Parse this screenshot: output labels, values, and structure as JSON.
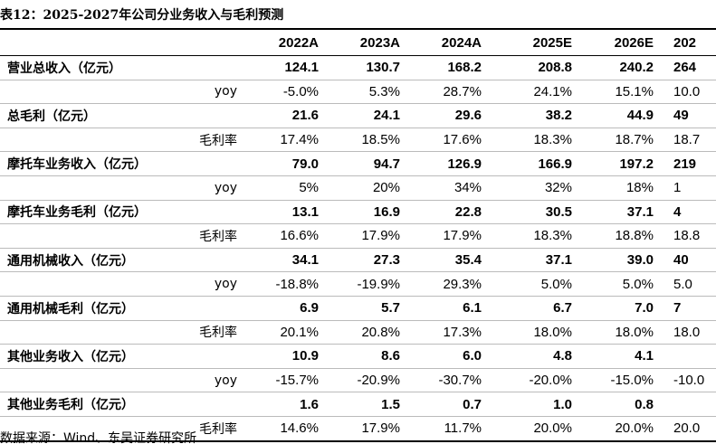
{
  "title": "表12：2025-2027年公司分业务收入与毛利预测",
  "table": {
    "columns": [
      "2022A",
      "2023A",
      "2024A",
      "2025E",
      "2026E",
      "202"
    ],
    "rows": [
      {
        "label": "营业总收入（亿元）",
        "main": true,
        "values": [
          "124.1",
          "130.7",
          "168.2",
          "208.8",
          "240.2",
          "264"
        ]
      },
      {
        "label": "yoy",
        "main": false,
        "values": [
          "-5.0%",
          "5.3%",
          "28.7%",
          "24.1%",
          "15.1%",
          "10.0"
        ]
      },
      {
        "label": "总毛利（亿元）",
        "main": true,
        "values": [
          "21.6",
          "24.1",
          "29.6",
          "38.2",
          "44.9",
          "49"
        ]
      },
      {
        "label": "毛利率",
        "main": false,
        "values": [
          "17.4%",
          "18.5%",
          "17.6%",
          "18.3%",
          "18.7%",
          "18.7"
        ]
      },
      {
        "label": "摩托车业务收入（亿元）",
        "main": true,
        "values": [
          "79.0",
          "94.7",
          "126.9",
          "166.9",
          "197.2",
          "219"
        ]
      },
      {
        "label": "yoy",
        "main": false,
        "values": [
          "5%",
          "20%",
          "34%",
          "32%",
          "18%",
          "1"
        ]
      },
      {
        "label": "摩托车业务毛利（亿元）",
        "main": true,
        "values": [
          "13.1",
          "16.9",
          "22.8",
          "30.5",
          "37.1",
          "4"
        ]
      },
      {
        "label": "毛利率",
        "main": false,
        "values": [
          "16.6%",
          "17.9%",
          "17.9%",
          "18.3%",
          "18.8%",
          "18.8"
        ]
      },
      {
        "label": "通用机械收入（亿元）",
        "main": true,
        "values": [
          "34.1",
          "27.3",
          "35.4",
          "37.1",
          "39.0",
          "40"
        ]
      },
      {
        "label": "yoy",
        "main": false,
        "values": [
          "-18.8%",
          "-19.9%",
          "29.3%",
          "5.0%",
          "5.0%",
          "5.0"
        ]
      },
      {
        "label": "通用机械毛利（亿元）",
        "main": true,
        "values": [
          "6.9",
          "5.7",
          "6.1",
          "6.7",
          "7.0",
          "7"
        ]
      },
      {
        "label": "毛利率",
        "main": false,
        "values": [
          "20.1%",
          "20.8%",
          "17.3%",
          "18.0%",
          "18.0%",
          "18.0"
        ]
      },
      {
        "label": "其他业务收入（亿元）",
        "main": true,
        "values": [
          "10.9",
          "8.6",
          "6.0",
          "4.8",
          "4.1",
          null
        ]
      },
      {
        "label": "yoy",
        "main": false,
        "values": [
          "-15.7%",
          "-20.9%",
          "-30.7%",
          "-20.0%",
          "-15.0%",
          "-10.0"
        ]
      },
      {
        "label": "其他业务毛利（亿元）",
        "main": true,
        "values": [
          "1.6",
          "1.5",
          "0.7",
          "1.0",
          "0.8",
          null
        ]
      },
      {
        "label": "毛利率",
        "main": false,
        "values": [
          "14.6%",
          "17.9%",
          "11.7%",
          "20.0%",
          "20.0%",
          "20.0"
        ]
      }
    ]
  },
  "source": "数据来源：Wind、东吴证券研究所"
}
